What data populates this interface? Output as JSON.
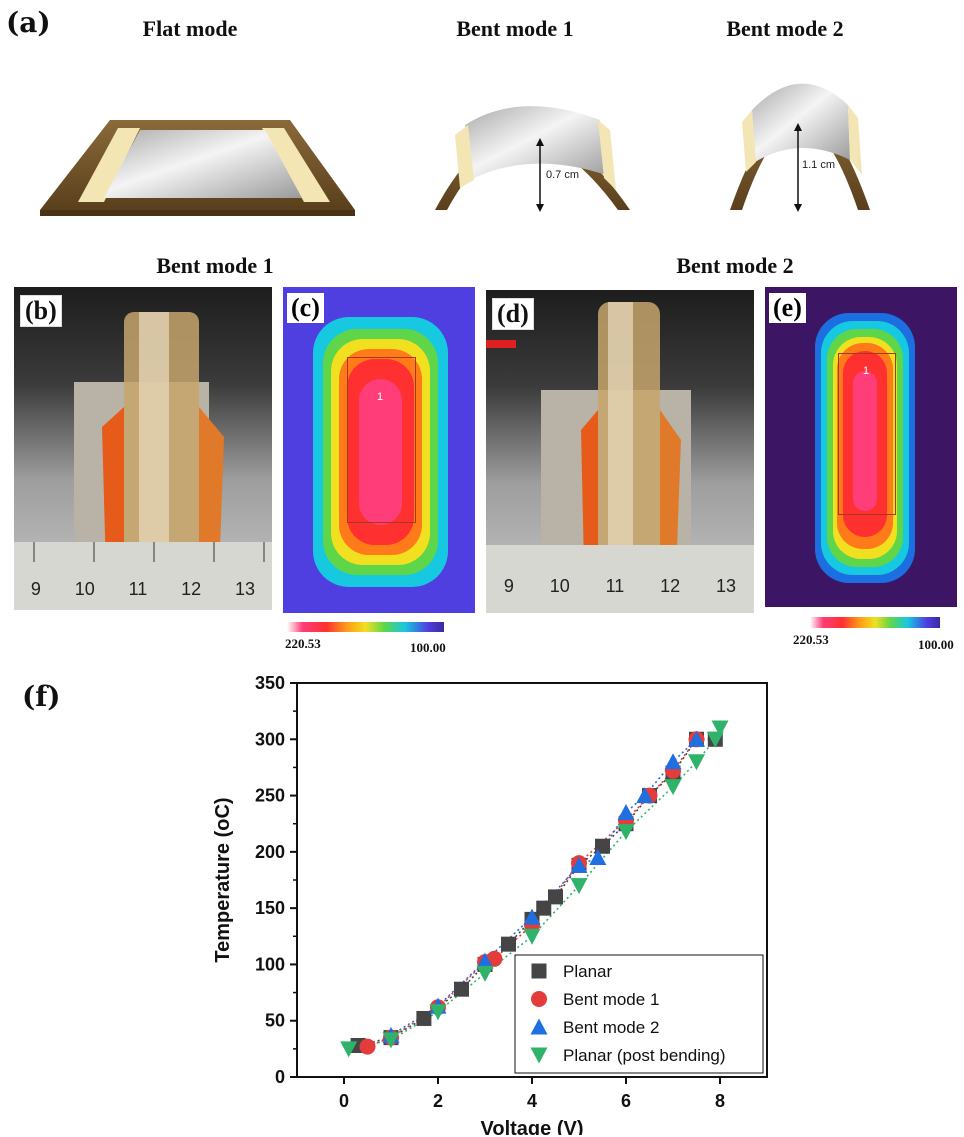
{
  "panel_a": {
    "label": "(a)",
    "titles": [
      "Flat mode",
      "Bent mode 1",
      "Bent mode 2"
    ],
    "dim1": "0.7 cm",
    "dim2": "1.1 cm"
  },
  "row2": {
    "title_left": "Bent mode 1",
    "title_right": "Bent mode 2",
    "labels": [
      "(b)",
      "(c)",
      "(d)",
      "(e)"
    ],
    "ruler_nums_b": [
      "9",
      "10",
      "11",
      "12",
      "13"
    ],
    "ruler_nums_d": [
      "9",
      "10",
      "11",
      "12",
      "13"
    ],
    "thermal_marker": "1",
    "scale_max": "220.53",
    "scale_min": "100.00"
  },
  "panel_f": {
    "label": "(f)"
  },
  "chart_data": {
    "type": "scatter",
    "xlabel": "Voltage (V)",
    "ylabel": "Temperature (oC)",
    "xlim": [
      -1,
      9
    ],
    "ylim": [
      0,
      350
    ],
    "xticks": [
      0,
      2,
      4,
      6,
      8
    ],
    "yticks": [
      0,
      50,
      100,
      150,
      200,
      250,
      300,
      350
    ],
    "legend_position": "bottom-right",
    "series": [
      {
        "name": "Planar",
        "marker": "square",
        "color": "#454545",
        "x": [
          0.3,
          1.0,
          1.7,
          2.5,
          3.0,
          3.5,
          4.0,
          4.25,
          4.5,
          5.0,
          5.5,
          6.0,
          6.5,
          7.0,
          7.5,
          7.9
        ],
        "y": [
          28,
          35,
          52,
          78,
          100,
          118,
          140,
          150,
          160,
          188,
          205,
          225,
          250,
          270,
          300,
          300
        ]
      },
      {
        "name": "Bent mode 1",
        "marker": "circle",
        "color": "#e43b3b",
        "x": [
          0.5,
          1.0,
          2.0,
          3.0,
          3.2,
          4.0,
          5.0,
          6.0,
          6.5,
          7.0,
          7.5
        ],
        "y": [
          27,
          35,
          62,
          102,
          105,
          135,
          190,
          228,
          250,
          272,
          300
        ]
      },
      {
        "name": "Bent mode 2",
        "marker": "triangle-up",
        "color": "#1f6fe0",
        "x": [
          1.0,
          2.0,
          3.0,
          4.0,
          5.0,
          5.4,
          6.0,
          6.4,
          7.0,
          7.5
        ],
        "y": [
          37,
          63,
          103,
          142,
          188,
          195,
          235,
          250,
          280,
          300
        ]
      },
      {
        "name": "Planar (post bending)",
        "marker": "triangle-down",
        "color": "#2fb36a",
        "x": [
          0.1,
          1.0,
          2.0,
          3.0,
          4.0,
          5.0,
          6.0,
          7.0,
          7.5,
          7.9,
          8.0
        ],
        "y": [
          25,
          33,
          58,
          92,
          125,
          170,
          218,
          258,
          280,
          300,
          310
        ]
      }
    ]
  }
}
